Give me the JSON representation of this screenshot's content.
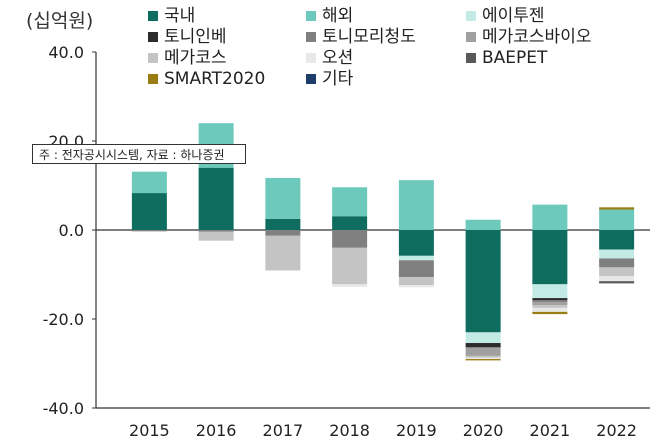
{
  "unit_label": "(십억원)",
  "note": "주 : 전자공시시스템, 자료 : 하나증권",
  "colors": {
    "국내": "#0f6d60",
    "해외": "#6cc9bb",
    "에이투젠": "#c2ebe6",
    "토니인베": "#2b2b2b",
    "토니모리청도": "#808080",
    "메가코스바이오": "#a0a0a0",
    "메가코스": "#c4c4c4",
    "오션": "#e8e8e8",
    "BAEPET": "#595959",
    "SMART2020": "#9a7d12",
    "기타": "#1f3d6b"
  },
  "chart_data": {
    "type": "bar",
    "stacked": true,
    "categories": [
      "2015",
      "2016",
      "2017",
      "2018",
      "2019",
      "2020",
      "2021",
      "2022"
    ],
    "ylim": [
      -40,
      40
    ],
    "yticks": [
      "40.0",
      "20.0",
      "0.0",
      "-20.0",
      "-40.0"
    ],
    "ytick_values": [
      40,
      20,
      0,
      -20,
      -40
    ],
    "grid": false,
    "legend_position": "top",
    "series": [
      {
        "name": "국내",
        "values": [
          8.3,
          14.0,
          2.5,
          3.1,
          -5.8,
          -23.0,
          -12.2,
          -4.4
        ]
      },
      {
        "name": "해외",
        "values": [
          4.8,
          10.0,
          9.2,
          6.5,
          11.2,
          2.3,
          5.7,
          4.6
        ]
      },
      {
        "name": "에이투젠",
        "values": [
          0,
          0,
          0,
          0,
          -1.0,
          -2.4,
          -3.1,
          -2.0
        ]
      },
      {
        "name": "토니인베",
        "values": [
          0,
          0,
          0,
          0,
          0,
          -0.9,
          -0.5,
          0
        ]
      },
      {
        "name": "토니모리청도",
        "values": [
          -0.3,
          -0.4,
          -1.3,
          -4.0,
          -3.8,
          -0.3,
          -0.4,
          -2.0
        ]
      },
      {
        "name": "메가코스바이오",
        "values": [
          0,
          0,
          0,
          0,
          0,
          -1.7,
          -0.7,
          0
        ]
      },
      {
        "name": "메가코스",
        "values": [
          0,
          -2.0,
          -7.8,
          -8.2,
          -1.8,
          -0.4,
          -0.6,
          -2.0
        ]
      },
      {
        "name": "오션",
        "values": [
          0,
          0,
          0,
          -0.6,
          -0.5,
          -0.3,
          -0.9,
          -1.1
        ]
      },
      {
        "name": "BAEPET",
        "values": [
          0,
          0,
          0,
          0,
          0,
          0,
          0,
          -0.5
        ]
      },
      {
        "name": "SMART2020",
        "values": [
          0,
          0,
          0,
          0,
          0,
          -0.3,
          -0.5,
          0.5
        ]
      },
      {
        "name": "기타",
        "values": [
          0,
          0,
          0,
          0,
          0,
          0,
          0,
          0
        ]
      }
    ]
  }
}
